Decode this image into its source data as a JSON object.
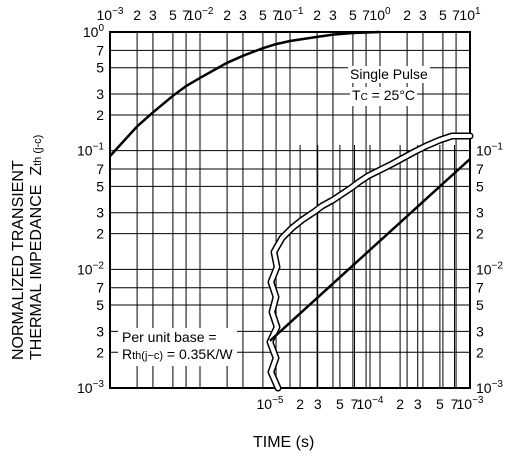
{
  "chart_data": [
    {
      "type": "line",
      "name": "long-pulse",
      "x_scale": "log",
      "y_scale": "log",
      "xlim": [
        0.001,
        10
      ],
      "ylim": [
        0.001,
        1
      ],
      "x_axis_position": "top",
      "x_tick_labels": [
        "10^-3",
        "2",
        "3",
        "5",
        "7",
        "10^-2",
        "2",
        "3",
        "5",
        "7",
        "10^-1",
        "2",
        "3",
        "5",
        "7",
        "10^0",
        "2",
        "3",
        "5",
        "7",
        "10^1"
      ],
      "y_tick_labels": [
        "10^0",
        "7",
        "5",
        "3",
        "2",
        "10^-1",
        "7",
        "5",
        "3",
        "2",
        "10^-2",
        "7",
        "5",
        "3",
        "2",
        "10^-3"
      ],
      "grid": true,
      "x": [
        0.001,
        0.002,
        0.003,
        0.005,
        0.007,
        0.01,
        0.02,
        0.03,
        0.05,
        0.07,
        0.1,
        0.2,
        0.3,
        0.5,
        0.7,
        1.0
      ],
      "y": [
        0.09,
        0.16,
        0.21,
        0.29,
        0.35,
        0.41,
        0.55,
        0.63,
        0.73,
        0.79,
        0.84,
        0.91,
        0.95,
        0.98,
        0.99,
        1.0
      ]
    },
    {
      "type": "line",
      "name": "short-pulse",
      "x_scale": "log",
      "y_scale": "log",
      "xlim": [
        1e-05,
        0.001
      ],
      "ylim": [
        0.001,
        1
      ],
      "x_axis_position": "bottom",
      "x_tick_labels": [
        "10^-5",
        "2",
        "3",
        "5",
        "7",
        "10^-4",
        "2",
        "3",
        "5",
        "7",
        "10^-3"
      ],
      "y_tick_labels": [
        "10^-1",
        "7",
        "5",
        "3",
        "2",
        "10^-2",
        "7",
        "5",
        "3",
        "2",
        "10^-3"
      ],
      "grid": true,
      "x": [
        1e-05,
        0.001
      ],
      "y": [
        0.0025,
        0.085
      ]
    }
  ],
  "axes": {
    "ylabel_line1": "NORMALIZED TRANSIENT",
    "ylabel_line2": "THERMAL IMPEDANCE",
    "ylabel_symbol": "Z",
    "ylabel_symbol_sub": "th (j-c)",
    "xlabel": "TIME (s)"
  },
  "annotations": {
    "pulse_label": "Single Pulse",
    "temp_label_prefix": "T",
    "temp_label_sub": "C",
    "temp_label_value": " = 25°C",
    "base_line1": "Per unit base =",
    "base_symbol": "R",
    "base_symbol_sub": "th(j−c)",
    "base_value": " = 0.35K/W"
  },
  "colors": {
    "line": "#000000",
    "background": "#ffffff"
  }
}
